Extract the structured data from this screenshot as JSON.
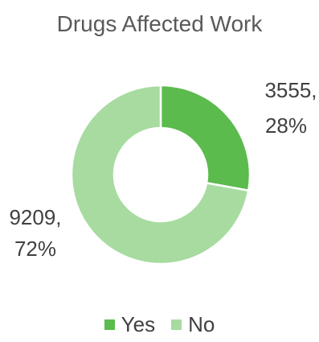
{
  "chart_data": {
    "type": "pie",
    "title": "Drugs Affected Work",
    "donut": true,
    "categories": [
      "Yes",
      "No"
    ],
    "values": [
      3555,
      9209
    ],
    "percents": [
      "28%",
      "72%"
    ],
    "colors": [
      "#5BBB4D",
      "#A7DBA0"
    ],
    "data_labels": [
      {
        "value": "3555,",
        "percent": "28%"
      },
      {
        "value": "9209,",
        "percent": "72%"
      }
    ],
    "legend": {
      "position": "bottom"
    }
  }
}
